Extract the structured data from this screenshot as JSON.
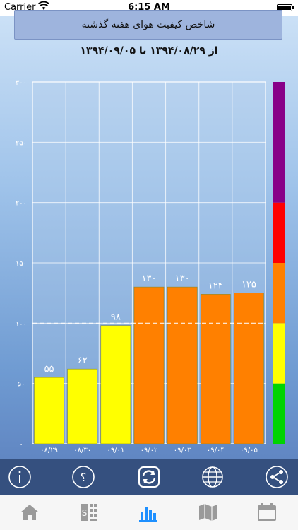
{
  "status_bar": {
    "carrier": "Carrier",
    "time": "6:15 AM"
  },
  "header": {
    "title": "شاخص کیفیت هوای هفته گذشته",
    "date_range": "از ۱۳۹۴/۰۸/۲۹ تا ۱۳۹۴/۰۹/۰۵"
  },
  "chart_data": {
    "type": "bar",
    "categories": [
      "۰۸/۲۹",
      "۰۸/۳۰",
      "۰۹/۰۱",
      "۰۹/۰۲",
      "۰۹/۰۳",
      "۰۹/۰۴",
      "۰۹/۰۵"
    ],
    "values": [
      55,
      62,
      98,
      130,
      130,
      124,
      125
    ],
    "value_labels": [
      "۵۵",
      "۶۲",
      "۹۸",
      "۱۳۰",
      "۱۳۰",
      "۱۲۴",
      "۱۲۵"
    ],
    "bar_colors": [
      "#ffff00",
      "#ffff00",
      "#ffff00",
      "#ff8000",
      "#ff8000",
      "#ff8000",
      "#ff8000"
    ],
    "ylim": [
      0,
      300
    ],
    "yticks": [
      0,
      50,
      100,
      150,
      200,
      250,
      300
    ],
    "ytick_labels": [
      "۰",
      "۵۰",
      "۱۰۰",
      "۱۵۰",
      "۲۰۰",
      "۲۵۰",
      "۳۰۰"
    ],
    "reference_line": 100,
    "grid": true,
    "scale_bands": [
      {
        "from": 0,
        "to": 50,
        "color": "#00d400"
      },
      {
        "from": 50,
        "to": 100,
        "color": "#ffff00"
      },
      {
        "from": 100,
        "to": 150,
        "color": "#ff8000"
      },
      {
        "from": 150,
        "to": 200,
        "color": "#ff0000"
      },
      {
        "from": 200,
        "to": 300,
        "color": "#880088"
      }
    ]
  },
  "toolbar": {
    "buttons": [
      "info-icon",
      "help-icon",
      "refresh-icon",
      "globe-icon",
      "share-icon"
    ],
    "active_color": "#ffffff"
  },
  "tabbar": {
    "tabs": [
      "home-icon",
      "stations-icon",
      "chart-icon",
      "map-icon",
      "calendar-icon"
    ],
    "active_tab": "chart-icon",
    "active_color": "#1e90ff",
    "inactive_color": "#9a9a9a"
  }
}
